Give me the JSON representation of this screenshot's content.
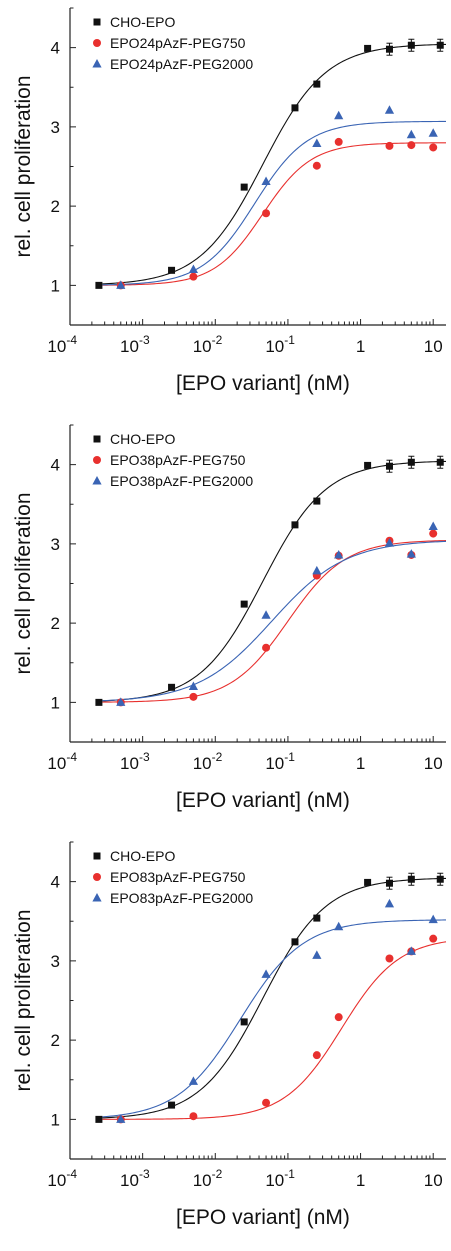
{
  "chart_data": [
    {
      "type": "scatter",
      "xlabel": "[EPO variant] (nM)",
      "ylabel": "rel. cell proliferation",
      "xscale": "log",
      "xlim": [
        0.0001,
        15
      ],
      "ylim": [
        0.5,
        4.5
      ],
      "xticks": [
        "10-4",
        "10-3",
        "10-2",
        "10-1",
        "1",
        "10"
      ],
      "yticks": [
        "1",
        "2",
        "3",
        "4"
      ],
      "legend_position": "top-left",
      "series": [
        {
          "name": "CHO-EPO",
          "color": "#111111",
          "marker": "square",
          "x": [
            0.00025,
            0.0025,
            0.025,
            0.125,
            0.25,
            1.25,
            2.5,
            5,
            12.5
          ],
          "y": [
            1.0,
            1.19,
            2.24,
            3.24,
            3.54,
            3.99,
            3.98,
            4.03,
            4.03
          ],
          "fit": {
            "bottom": 1.0,
            "top": 4.05,
            "ec50": 0.045,
            "hill": 1.0
          }
        },
        {
          "name": "EPO24pAzF-PEG750",
          "color": "#e8302e",
          "marker": "circle",
          "x": [
            0.0005,
            0.005,
            0.05,
            0.25,
            0.5,
            2.5,
            5,
            10
          ],
          "y": [
            1.0,
            1.11,
            1.91,
            2.51,
            2.81,
            2.76,
            2.77,
            2.74
          ],
          "fit": {
            "bottom": 1.0,
            "top": 2.8,
            "ec50": 0.045,
            "hill": 1.3
          }
        },
        {
          "name": "EPO24pAzF-PEG2000",
          "color": "#3a64b4",
          "marker": "triangle",
          "x": [
            0.0005,
            0.005,
            0.05,
            0.25,
            0.5,
            2.5,
            5,
            10
          ],
          "y": [
            1.0,
            1.2,
            2.31,
            2.79,
            3.14,
            3.21,
            2.9,
            2.92
          ],
          "fit": {
            "bottom": 1.0,
            "top": 3.07,
            "ec50": 0.035,
            "hill": 1.2
          }
        }
      ]
    },
    {
      "type": "scatter",
      "xlabel": "[EPO variant] (nM)",
      "ylabel": "rel. cell proliferation",
      "xscale": "log",
      "xlim": [
        0.0001,
        15
      ],
      "ylim": [
        0.5,
        4.5
      ],
      "xticks": [
        "10-4",
        "10-3",
        "10-2",
        "10-1",
        "1",
        "10"
      ],
      "yticks": [
        "1",
        "2",
        "3",
        "4"
      ],
      "legend_position": "top-left",
      "series": [
        {
          "name": "CHO-EPO",
          "color": "#111111",
          "marker": "square",
          "x": [
            0.00025,
            0.0025,
            0.025,
            0.125,
            0.25,
            1.25,
            2.5,
            5,
            12.5
          ],
          "y": [
            1.0,
            1.19,
            2.24,
            3.24,
            3.54,
            3.99,
            3.98,
            4.03,
            4.03
          ],
          "fit": {
            "bottom": 1.0,
            "top": 4.05,
            "ec50": 0.045,
            "hill": 1.0
          }
        },
        {
          "name": "EPO38pAzF-PEG750",
          "color": "#e8302e",
          "marker": "circle",
          "x": [
            0.0005,
            0.005,
            0.05,
            0.25,
            0.5,
            2.5,
            5,
            10
          ],
          "y": [
            1.0,
            1.07,
            1.69,
            2.6,
            2.85,
            3.04,
            2.86,
            3.13
          ],
          "fit": {
            "bottom": 1.0,
            "top": 3.05,
            "ec50": 0.1,
            "hill": 1.1
          }
        },
        {
          "name": "EPO38pAzF-PEG2000",
          "color": "#3a64b4",
          "marker": "triangle",
          "x": [
            0.0005,
            0.005,
            0.05,
            0.25,
            0.5,
            2.5,
            5,
            10
          ],
          "y": [
            1.0,
            1.2,
            2.1,
            2.66,
            2.86,
            3.01,
            2.87,
            3.22
          ],
          "fit": {
            "bottom": 1.0,
            "top": 3.05,
            "ec50": 0.06,
            "hill": 0.85
          }
        }
      ]
    },
    {
      "type": "scatter",
      "xlabel": "[EPO variant] (nM)",
      "ylabel": "rel. cell proliferation",
      "xscale": "log",
      "xlim": [
        0.0001,
        15
      ],
      "ylim": [
        0.5,
        4.5
      ],
      "xticks": [
        "10-4",
        "10-3",
        "10-2",
        "10-1",
        "1",
        "10"
      ],
      "yticks": [
        "1",
        "2",
        "3",
        "4"
      ],
      "legend_position": "top-left",
      "series": [
        {
          "name": "CHO-EPO",
          "color": "#111111",
          "marker": "square",
          "x": [
            0.00025,
            0.0025,
            0.025,
            0.125,
            0.25,
            1.25,
            2.5,
            5,
            12.5
          ],
          "y": [
            1.0,
            1.18,
            2.23,
            3.24,
            3.54,
            3.99,
            3.98,
            4.03,
            4.03
          ],
          "fit": {
            "bottom": 1.0,
            "top": 4.05,
            "ec50": 0.045,
            "hill": 1.0
          }
        },
        {
          "name": "EPO83pAzF-PEG750",
          "color": "#e8302e",
          "marker": "circle",
          "x": [
            0.0005,
            0.005,
            0.05,
            0.25,
            0.5,
            2.5,
            5,
            10
          ],
          "y": [
            1.0,
            1.04,
            1.21,
            1.81,
            2.29,
            3.03,
            3.12,
            3.28
          ],
          "fit": {
            "bottom": 1.0,
            "top": 3.3,
            "ec50": 0.55,
            "hill": 1.1
          }
        },
        {
          "name": "EPO83pAzF-PEG2000",
          "color": "#3a64b4",
          "marker": "triangle",
          "x": [
            0.0005,
            0.005,
            0.05,
            0.25,
            0.5,
            2.5,
            5,
            10
          ],
          "y": [
            1.0,
            1.48,
            2.83,
            3.07,
            3.43,
            3.72,
            3.12,
            3.52
          ],
          "fit": {
            "bottom": 1.0,
            "top": 3.52,
            "ec50": 0.022,
            "hill": 1.0
          }
        }
      ]
    }
  ]
}
